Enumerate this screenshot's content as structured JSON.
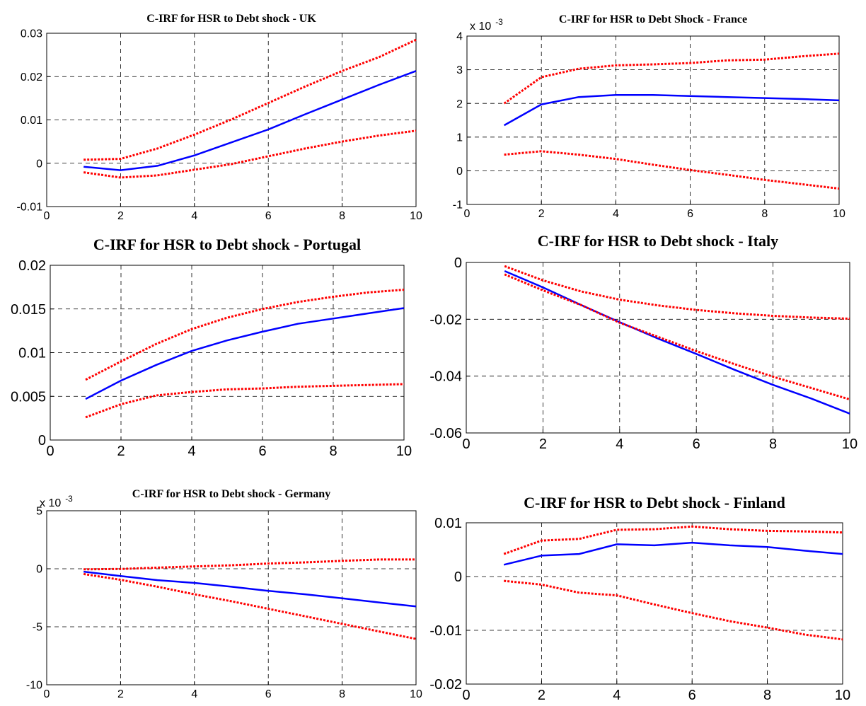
{
  "figure": {
    "background": "#ffffff",
    "colors": {
      "estimate": "#0000ff",
      "bands": "#ff0000",
      "grid": "#000000"
    }
  },
  "chart_data": [
    {
      "type": "line",
      "title": "C-IRF for HSR to Debt shock - UK",
      "xlim": [
        0,
        10
      ],
      "ylim": [
        -0.01,
        0.03
      ],
      "xticks": [
        "0",
        "2",
        "4",
        "6",
        "8",
        "10"
      ],
      "yticks": [
        "-0.01",
        "0",
        "0.01",
        "0.02",
        "0.03"
      ],
      "exponent_label": "",
      "grid": true,
      "x": [
        1,
        2,
        3,
        4,
        5,
        6,
        7,
        8,
        9,
        10
      ],
      "series": [
        {
          "values": [
            -0.0008,
            -0.0016,
            -0.0006,
            0.0018,
            0.0048,
            0.0078,
            0.0113,
            0.0147,
            0.0181,
            0.0213
          ],
          "style": "solid"
        },
        {
          "values": [
            0.0008,
            0.001,
            0.0034,
            0.0066,
            0.0101,
            0.0139,
            0.0177,
            0.0213,
            0.0245,
            0.0285
          ],
          "style": "dotted"
        },
        {
          "values": [
            -0.0021,
            -0.0033,
            -0.0028,
            -0.0015,
            -0.0002,
            0.0016,
            0.0034,
            0.005,
            0.0064,
            0.0075
          ],
          "style": "dotted"
        }
      ]
    },
    {
      "type": "line",
      "title": "C-IRF for HSR to Debt Shock - France",
      "xlim": [
        0,
        10
      ],
      "ylim": [
        -1,
        4
      ],
      "xticks": [
        "0",
        "2",
        "4",
        "6",
        "8",
        "10"
      ],
      "yticks": [
        "-1",
        "0",
        "1",
        "2",
        "3",
        "4"
      ],
      "exponent_label": "x 10",
      "exponent_power": "-3",
      "grid": true,
      "x": [
        1,
        2,
        3,
        4,
        5,
        6,
        7,
        8,
        9,
        10
      ],
      "series": [
        {
          "values": [
            1.35,
            1.97,
            2.19,
            2.25,
            2.25,
            2.22,
            2.19,
            2.16,
            2.13,
            2.09
          ],
          "style": "solid"
        },
        {
          "values": [
            2.0,
            2.78,
            3.03,
            3.13,
            3.16,
            3.2,
            3.28,
            3.3,
            3.4,
            3.48
          ],
          "style": "dotted"
        },
        {
          "values": [
            0.48,
            0.58,
            0.48,
            0.35,
            0.18,
            0.02,
            -0.12,
            -0.27,
            -0.4,
            -0.53
          ],
          "style": "dotted"
        }
      ]
    },
    {
      "type": "line",
      "title": "C-IRF for HSR to Debt shock - Portugal",
      "xlim": [
        0,
        10
      ],
      "ylim": [
        0,
        0.02
      ],
      "xticks": [
        "0",
        "2",
        "4",
        "6",
        "8",
        "10"
      ],
      "yticks": [
        "0",
        "0.005",
        "0.01",
        "0.015",
        "0.02"
      ],
      "exponent_label": "",
      "grid": true,
      "x": [
        1,
        2,
        3,
        4,
        5,
        6,
        7,
        8,
        9,
        10
      ],
      "series": [
        {
          "values": [
            0.0047,
            0.0068,
            0.0086,
            0.0102,
            0.0114,
            0.0124,
            0.0133,
            0.0139,
            0.0145,
            0.0151
          ],
          "style": "solid"
        },
        {
          "values": [
            0.0069,
            0.009,
            0.011,
            0.0127,
            0.014,
            0.015,
            0.0158,
            0.0164,
            0.0169,
            0.0172
          ],
          "style": "dotted"
        },
        {
          "values": [
            0.0026,
            0.0041,
            0.0051,
            0.0055,
            0.0058,
            0.0059,
            0.0061,
            0.0062,
            0.0063,
            0.0064
          ],
          "style": "dotted"
        }
      ]
    },
    {
      "type": "line",
      "title": "C-IRF for HSR to Debt shock - Italy",
      "xlim": [
        0,
        10
      ],
      "ylim": [
        -0.06,
        0
      ],
      "xticks": [
        "0",
        "2",
        "4",
        "6",
        "8",
        "10"
      ],
      "yticks": [
        "-0.06",
        "-0.04",
        "-0.02",
        "0"
      ],
      "exponent_label": "",
      "grid": true,
      "x": [
        1,
        2,
        3,
        4,
        5,
        6,
        7,
        8,
        9,
        10
      ],
      "series": [
        {
          "values": [
            -0.003,
            -0.0088,
            -0.015,
            -0.021,
            -0.0268,
            -0.0322,
            -0.0378,
            -0.0431,
            -0.0479,
            -0.0532
          ],
          "style": "solid"
        },
        {
          "values": [
            -0.0013,
            -0.0063,
            -0.0102,
            -0.0131,
            -0.0151,
            -0.0167,
            -0.0179,
            -0.0188,
            -0.0194,
            -0.0198
          ],
          "style": "dotted"
        },
        {
          "values": [
            -0.0042,
            -0.0098,
            -0.015,
            -0.0212,
            -0.0262,
            -0.0312,
            -0.0358,
            -0.0402,
            -0.0442,
            -0.0482
          ],
          "style": "dotted"
        }
      ]
    },
    {
      "type": "line",
      "title": "C-IRF for HSR to Debt shock - Germany",
      "xlim": [
        0,
        10
      ],
      "ylim": [
        -10,
        5
      ],
      "xticks": [
        "0",
        "2",
        "4",
        "6",
        "8",
        "10"
      ],
      "yticks": [
        "-10",
        "-5",
        "0",
        "5"
      ],
      "exponent_label": "x 10",
      "exponent_power": "-3",
      "grid": true,
      "x": [
        1,
        2,
        3,
        4,
        5,
        6,
        7,
        8,
        9,
        10
      ],
      "series": [
        {
          "values": [
            -0.25,
            -0.62,
            -0.98,
            -1.22,
            -1.55,
            -1.9,
            -2.2,
            -2.55,
            -2.9,
            -3.25
          ],
          "style": "solid"
        },
        {
          "values": [
            -0.05,
            -0.02,
            0.1,
            0.2,
            0.3,
            0.45,
            0.55,
            0.68,
            0.8,
            0.8
          ],
          "style": "dotted"
        },
        {
          "values": [
            -0.45,
            -0.95,
            -1.55,
            -2.2,
            -2.8,
            -3.45,
            -4.1,
            -4.75,
            -5.4,
            -6.05
          ],
          "style": "dotted"
        }
      ]
    },
    {
      "type": "line",
      "title": "C-IRF for HSR to Debt shock - Finland",
      "xlim": [
        0,
        10
      ],
      "ylim": [
        -0.02,
        0.01
      ],
      "xticks": [
        "0",
        "2",
        "4",
        "6",
        "8",
        "10"
      ],
      "yticks": [
        "-0.02",
        "-0.01",
        "0",
        "0.01"
      ],
      "exponent_label": "",
      "grid": true,
      "x": [
        1,
        2,
        3,
        4,
        5,
        6,
        7,
        8,
        9,
        10
      ],
      "series": [
        {
          "values": [
            0.0022,
            0.0039,
            0.0042,
            0.006,
            0.0058,
            0.0063,
            0.0058,
            0.0055,
            0.0048,
            0.0042
          ],
          "style": "solid"
        },
        {
          "values": [
            0.0042,
            0.0067,
            0.007,
            0.0087,
            0.0088,
            0.0093,
            0.0088,
            0.0085,
            0.0084,
            0.0082
          ],
          "style": "dotted"
        },
        {
          "values": [
            -0.0008,
            -0.0015,
            -0.003,
            -0.0035,
            -0.0052,
            -0.0068,
            -0.0083,
            -0.0095,
            -0.0108,
            -0.0117
          ],
          "style": "dotted"
        }
      ]
    }
  ]
}
